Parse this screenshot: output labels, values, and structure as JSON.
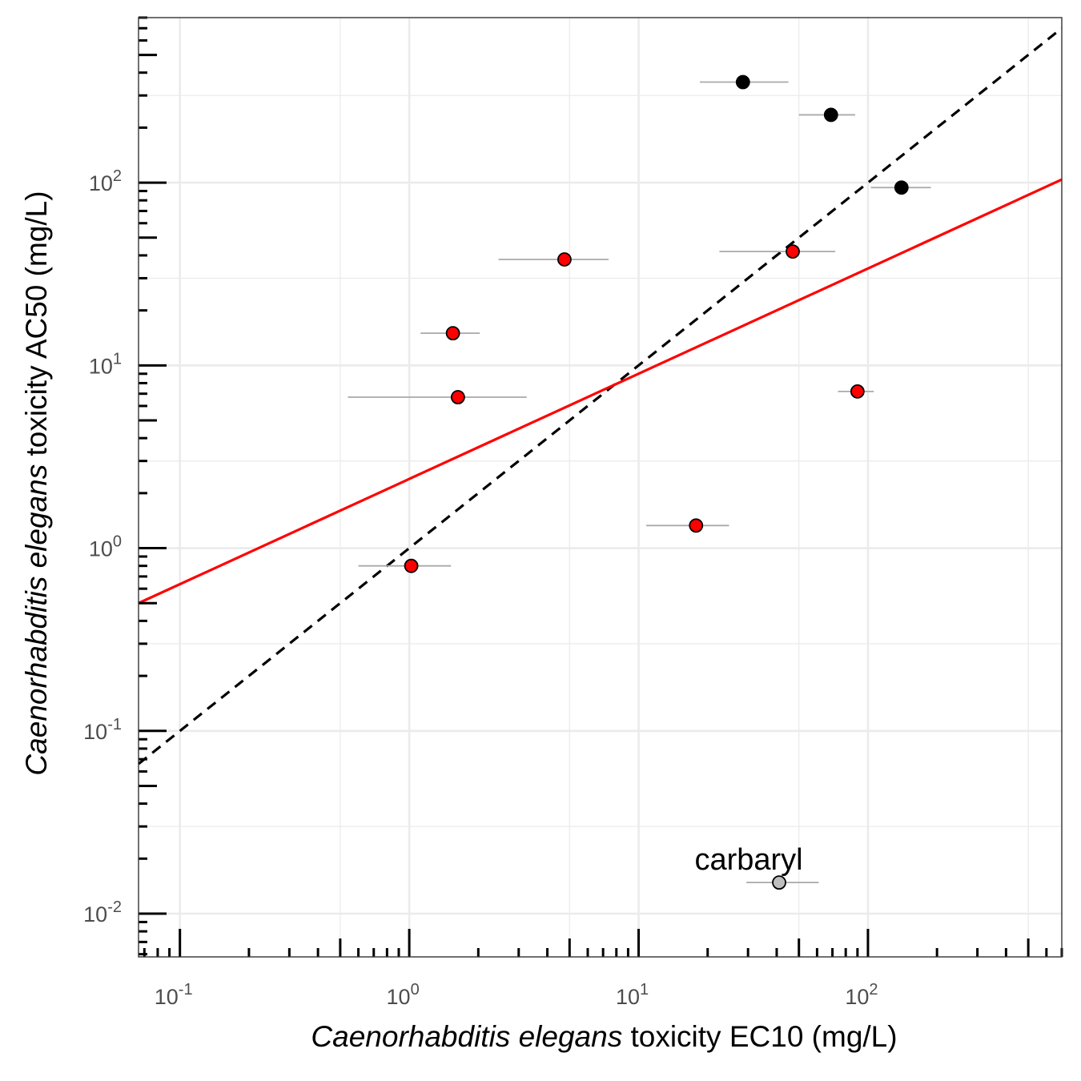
{
  "chart_data": {
    "type": "scatter",
    "x_scale": "log10",
    "y_scale": "log10",
    "xlim": [
      0.066,
      700
    ],
    "ylim": [
      0.0058,
      800
    ],
    "grid": true,
    "xlabel_italic": "Caenorhabditis elegans",
    "xlabel_rest": " toxicity EC10 (mg/L)",
    "ylabel_italic": "Caenorhabditis elegans",
    "ylabel_rest": " toxicity AC50 (mg/L)",
    "x_ticks": [
      {
        "value": 0.1,
        "base": "10",
        "exp": "-1"
      },
      {
        "value": 1,
        "base": "10",
        "exp": "0"
      },
      {
        "value": 10,
        "base": "10",
        "exp": "1"
      },
      {
        "value": 100,
        "base": "10",
        "exp": "2"
      }
    ],
    "y_ticks": [
      {
        "value": 0.01,
        "base": "10",
        "exp": "-2"
      },
      {
        "value": 0.1,
        "base": "10",
        "exp": "-1"
      },
      {
        "value": 1,
        "base": "10",
        "exp": "0"
      },
      {
        "value": 10,
        "base": "10",
        "exp": "1"
      },
      {
        "value": 100,
        "base": "10",
        "exp": "2"
      }
    ],
    "points": [
      {
        "x": 28.5,
        "y": 355,
        "xmin": 18.5,
        "xmax": 45,
        "fill": "#000000"
      },
      {
        "x": 69,
        "y": 235,
        "xmin": 50,
        "xmax": 88,
        "fill": "#000000"
      },
      {
        "x": 140,
        "y": 94,
        "xmin": 103,
        "xmax": 188,
        "fill": "#000000"
      },
      {
        "x": 4.75,
        "y": 38,
        "xmin": 2.45,
        "xmax": 7.4,
        "fill": "#ff0000"
      },
      {
        "x": 47,
        "y": 42,
        "xmin": 22.5,
        "xmax": 72,
        "fill": "#ff0000"
      },
      {
        "x": 1.55,
        "y": 15,
        "xmin": 1.12,
        "xmax": 2.03,
        "fill": "#ff0000"
      },
      {
        "x": 1.63,
        "y": 6.7,
        "xmin": 0.54,
        "xmax": 3.25,
        "fill": "#ff0000"
      },
      {
        "x": 90,
        "y": 7.2,
        "xmin": 74,
        "xmax": 106,
        "fill": "#ff0000"
      },
      {
        "x": 17.8,
        "y": 1.33,
        "xmin": 10.8,
        "xmax": 24.8,
        "fill": "#ff0000"
      },
      {
        "x": 1.02,
        "y": 0.8,
        "xmin": 0.6,
        "xmax": 1.52,
        "fill": "#ff0000"
      },
      {
        "x": 41,
        "y": 0.0148,
        "xmin": 29.5,
        "xmax": 61,
        "fill": "#bebebe",
        "label": "carbaryl"
      }
    ],
    "reference_line": {
      "style": "dashed",
      "color": "#000000",
      "slope": 1,
      "intercept_log10": 0
    },
    "fit_line": {
      "color": "#ff0000",
      "x": [
        0.066,
        700
      ],
      "y": [
        0.5,
        104
      ]
    }
  }
}
